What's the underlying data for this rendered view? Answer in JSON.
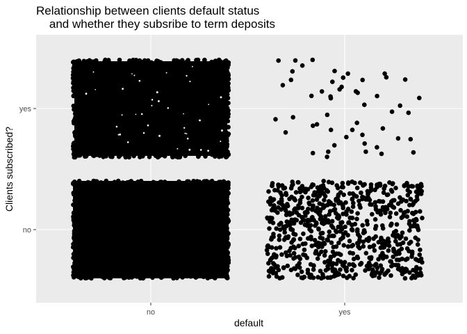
{
  "chart_data": {
    "type": "scatter",
    "title_lines": [
      "Relationship between clients default status",
      "    and whether they subsribe to term deposits"
    ],
    "xlabel": "default",
    "ylabel": "Clients subscribed?",
    "x_categories": [
      "no",
      "yes"
    ],
    "y_categories": [
      "no",
      "yes"
    ],
    "jitter": true,
    "grid": true,
    "point_color": "#000000",
    "panel_background": "#ebebeb",
    "groups": [
      {
        "x": "no",
        "y": "no",
        "density": "saturated",
        "approx_points": 32588
      },
      {
        "x": "no",
        "y": "yes",
        "density": "very dense",
        "approx_points": 4197
      },
      {
        "x": "yes",
        "y": "no",
        "density": "moderate",
        "approx_points": 763
      },
      {
        "x": "yes",
        "y": "yes",
        "density": "sparse",
        "approx_points": 52
      }
    ]
  }
}
